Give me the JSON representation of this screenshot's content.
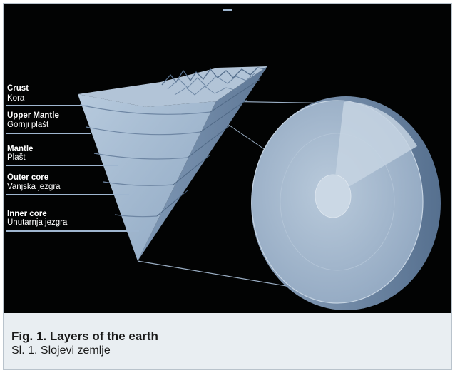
{
  "figure": {
    "layers": [
      {
        "en": "Crust",
        "hr": "Kora"
      },
      {
        "en": "Upper Mantle",
        "hr": "Gornji plašt"
      },
      {
        "en": "Mantle",
        "hr": "Plašt"
      },
      {
        "en": "Outer core",
        "hr": "Vanjska jezgra"
      },
      {
        "en": "Inner core",
        "hr": "Unutarnja jezgra"
      }
    ]
  },
  "caption": {
    "title": "Fig. 1. Layers of the earth",
    "subtitle": "Sl. 1. Slojevi zemlje"
  },
  "colors": {
    "background": "#020303",
    "wedge": "#9fb6cf",
    "disc": "#a7bad0",
    "caption_bg": "#e9eef2"
  }
}
